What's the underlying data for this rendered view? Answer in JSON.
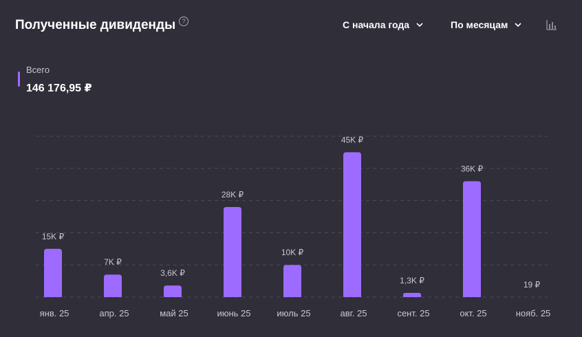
{
  "header": {
    "title": "Полученные дивиденды",
    "help_symbol": "?",
    "period_select": "С начала года",
    "group_select": "По месяцам"
  },
  "legend": {
    "label": "Всего",
    "total": "146 176,95 ₽",
    "color": "#9d6bff"
  },
  "chart_data": {
    "type": "bar",
    "categories": [
      "янв. 25",
      "апр. 25",
      "май 25",
      "июнь 25",
      "июль 25",
      "авг. 25",
      "сент. 25",
      "окт. 25",
      "нояб. 25"
    ],
    "values": [
      15000,
      7000,
      3600,
      28000,
      10000,
      45000,
      1300,
      36000,
      19
    ],
    "data_labels": [
      "15K ₽",
      "7K ₽",
      "3,6K ₽",
      "28K ₽",
      "10K ₽",
      "45K ₽",
      "1,3K ₽",
      "36K ₽",
      "19 ₽"
    ],
    "title": "Полученные дивиденды",
    "xlabel": "",
    "ylabel": "",
    "ylim": [
      0,
      50000
    ],
    "grid": true,
    "bar_color": "#9d6bff"
  }
}
